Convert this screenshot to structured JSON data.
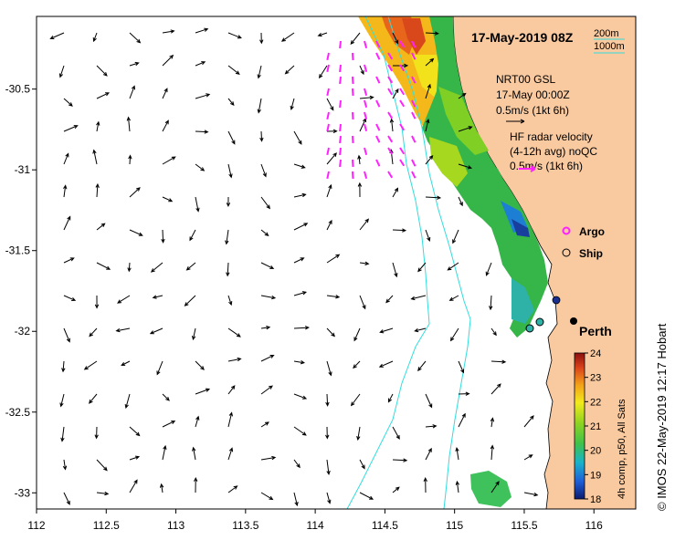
{
  "title": "17-May-2019 08Z",
  "credit": "© IMOS 22-May-2019 12:17 Hobart",
  "map": {
    "lon_range": [
      112,
      116.3
    ],
    "lat_range": [
      -33.1,
      -30.05
    ],
    "lon_ticks": [
      "112",
      "112.5",
      "113",
      "113.5",
      "114",
      "114.5",
      "115",
      "115.5",
      "116"
    ],
    "lon_tick_values": [
      112,
      112.5,
      113,
      113.5,
      114,
      114.5,
      115,
      115.5,
      116
    ],
    "lat_ticks": [
      "-30.5",
      "-31",
      "-31.5",
      "-32",
      "-32.5",
      "-33"
    ],
    "lat_tick_values": [
      -30.5,
      -31,
      -31.5,
      -32,
      -32.5,
      -33
    ],
    "land_color": "#f9c9a0",
    "ocean_color": "#ffffff",
    "isobath_color": "#33dddd"
  },
  "isobath_legend": {
    "line1": "200m",
    "line2": "1000m"
  },
  "gsl_legend": {
    "line1": "NRT00 GSL",
    "line2": "17-May 00:00Z",
    "line3": "0.5m/s (1kt 6h)"
  },
  "radar_legend": {
    "line1": "HF radar velocity",
    "line2": "(4-12h avg) noQC",
    "line3": "0.5m/s (1kt 6h)",
    "arrow_color": "#ff22ff"
  },
  "markers": {
    "argo_label": "Argo",
    "ship_label": "Ship",
    "argo_color": "#ff22ff"
  },
  "places": {
    "perth": "Perth"
  },
  "colorbar": {
    "label": "4h comp, p50, All Sats",
    "ticks": [
      "24",
      "23",
      "22",
      "21",
      "20",
      "19",
      "18"
    ],
    "min": 18,
    "max": 24
  }
}
